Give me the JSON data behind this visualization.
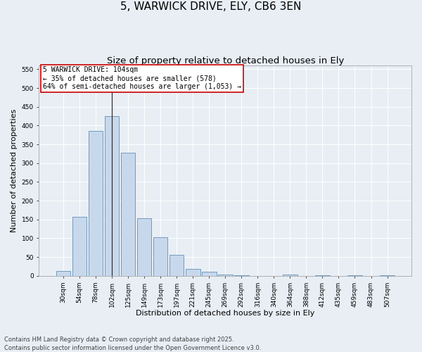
{
  "title": "5, WARWICK DRIVE, ELY, CB6 3EN",
  "subtitle": "Size of property relative to detached houses in Ely",
  "xlabel": "Distribution of detached houses by size in Ely",
  "ylabel": "Number of detached properties",
  "categories": [
    "30sqm",
    "54sqm",
    "78sqm",
    "102sqm",
    "125sqm",
    "149sqm",
    "173sqm",
    "197sqm",
    "221sqm",
    "245sqm",
    "269sqm",
    "292sqm",
    "316sqm",
    "340sqm",
    "364sqm",
    "388sqm",
    "412sqm",
    "435sqm",
    "459sqm",
    "483sqm",
    "507sqm"
  ],
  "values": [
    13,
    157,
    385,
    425,
    328,
    153,
    103,
    55,
    18,
    10,
    4,
    1,
    0,
    0,
    3,
    0,
    2,
    0,
    1,
    0,
    2
  ],
  "bar_color": "#c8d8ec",
  "bar_edge_color": "#6090b8",
  "vline_x": 3,
  "vline_color": "#333333",
  "annotation_text": "5 WARWICK DRIVE: 104sqm\n← 35% of detached houses are smaller (578)\n64% of semi-detached houses are larger (1,053) →",
  "annotation_box_facecolor": "#ffffff",
  "annotation_box_edgecolor": "#cc0000",
  "ylim": [
    0,
    560
  ],
  "yticks": [
    0,
    50,
    100,
    150,
    200,
    250,
    300,
    350,
    400,
    450,
    500,
    550
  ],
  "footer": "Contains HM Land Registry data © Crown copyright and database right 2025.\nContains public sector information licensed under the Open Government Licence v3.0.",
  "background_color": "#e8eef4",
  "grid_color": "#ffffff",
  "title_fontsize": 11,
  "subtitle_fontsize": 9.5,
  "label_fontsize": 8,
  "tick_fontsize": 6.5,
  "annotation_fontsize": 7,
  "footer_fontsize": 6
}
